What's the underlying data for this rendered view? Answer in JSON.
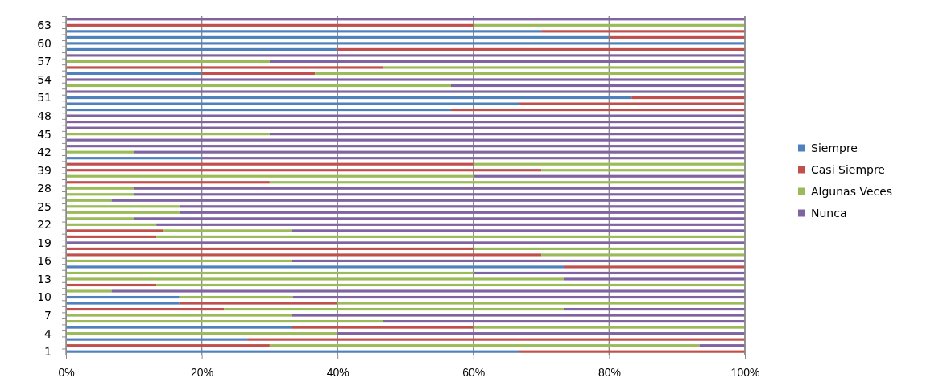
{
  "chart_data": {
    "type": "bar",
    "orientation": "horizontal",
    "stacked": true,
    "categories": [
      null,
      "63",
      null,
      null,
      "60",
      null,
      null,
      "57",
      null,
      null,
      "54",
      null,
      null,
      "51",
      null,
      null,
      "48",
      null,
      null,
      "45",
      null,
      null,
      "42",
      null,
      null,
      "39",
      null,
      null,
      "28",
      null,
      null,
      "25",
      null,
      null,
      "22",
      null,
      null,
      "19",
      null,
      null,
      "16",
      null,
      null,
      "13",
      null,
      null,
      "10",
      null,
      null,
      "7",
      null,
      null,
      "4",
      null,
      null,
      "1"
    ],
    "series": [
      {
        "name": "Siempre",
        "color": "#4f81bd",
        "values": [
          0,
          0,
          70,
          80,
          100,
          40,
          0,
          0,
          0,
          20,
          0,
          0,
          0,
          83.3,
          66.7,
          56.7,
          0,
          0,
          0,
          0,
          0,
          0,
          0,
          20,
          0,
          0,
          0,
          0,
          0,
          0,
          0,
          0,
          0,
          0,
          0,
          0,
          0,
          0,
          0,
          0,
          0,
          73.3,
          0,
          0,
          0,
          0,
          16.7,
          16.7,
          0,
          0,
          0,
          33.3,
          0,
          26.7,
          0,
          66.7
        ]
      },
      {
        "name": "Casi Siempre",
        "color": "#c0504d",
        "values": [
          0,
          60,
          30,
          20,
          0,
          60,
          0,
          0,
          46.7,
          16.7,
          0,
          0,
          0,
          16.7,
          33.3,
          43.3,
          0,
          0,
          0,
          0,
          0,
          0,
          0,
          0,
          60,
          70,
          0,
          30,
          0,
          0,
          0,
          0,
          0,
          0,
          0,
          14.3,
          13.3,
          0,
          60,
          70,
          0,
          26.7,
          0,
          0,
          13.3,
          0,
          0,
          23.3,
          23.3,
          0,
          0,
          26.7,
          0,
          73.3,
          30,
          33.3
        ]
      },
      {
        "name": "Algunas Veces",
        "color": "#9bbb59",
        "values": [
          0,
          40,
          0,
          0,
          0,
          0,
          0,
          30,
          53.3,
          63.3,
          0,
          56.7,
          0,
          0,
          0,
          0,
          0,
          0,
          0,
          30,
          0,
          0,
          10,
          0,
          40,
          30,
          60,
          70,
          10,
          10,
          6.7,
          16.7,
          16.7,
          10,
          13.3,
          19,
          86.7,
          0,
          40,
          30,
          33.3,
          0,
          60,
          73.3,
          86.7,
          6.7,
          16.7,
          60,
          50,
          33.3,
          46.7,
          40,
          40,
          0,
          63.3,
          0
        ]
      },
      {
        "name": "Nunca",
        "color": "#8064a2",
        "values": [
          100,
          0,
          0,
          0,
          0,
          0,
          100,
          70,
          0,
          0,
          100,
          43.3,
          100,
          0,
          0,
          0,
          100,
          100,
          100,
          70,
          100,
          100,
          90,
          80,
          0,
          0,
          40,
          0,
          90,
          90,
          93.3,
          83.3,
          83.3,
          90,
          86.7,
          66.7,
          0,
          100,
          0,
          0,
          66.7,
          0,
          40,
          26.7,
          0,
          93.3,
          66.6,
          0,
          26.7,
          66.7,
          53.3,
          0,
          60,
          0,
          6.7,
          0
        ]
      }
    ],
    "xlim": [
      0,
      100
    ],
    "xticks": [
      {
        "value": 0,
        "label": "0%"
      },
      {
        "value": 20,
        "label": "20%"
      },
      {
        "value": 40,
        "label": "40%"
      },
      {
        "value": 60,
        "label": "60%"
      },
      {
        "value": 80,
        "label": "80%"
      },
      {
        "value": 100,
        "label": "100%"
      }
    ],
    "grid": "x",
    "legend": "right"
  }
}
